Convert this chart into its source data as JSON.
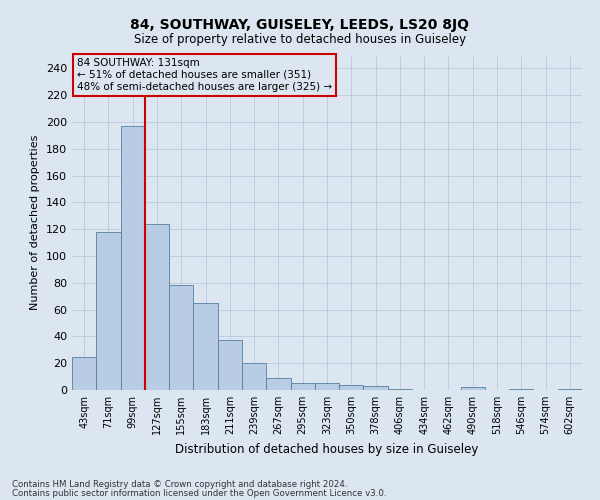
{
  "title1": "84, SOUTHWAY, GUISELEY, LEEDS, LS20 8JQ",
  "title2": "Size of property relative to detached houses in Guiseley",
  "xlabel": "Distribution of detached houses by size in Guiseley",
  "ylabel": "Number of detached properties",
  "categories": [
    "43sqm",
    "71sqm",
    "99sqm",
    "127sqm",
    "155sqm",
    "183sqm",
    "211sqm",
    "239sqm",
    "267sqm",
    "295sqm",
    "323sqm",
    "350sqm",
    "378sqm",
    "406sqm",
    "434sqm",
    "462sqm",
    "490sqm",
    "518sqm",
    "546sqm",
    "574sqm",
    "602sqm"
  ],
  "values": [
    25,
    118,
    197,
    124,
    78,
    65,
    37,
    20,
    9,
    5,
    5,
    4,
    3,
    1,
    0,
    0,
    2,
    0,
    1,
    0,
    1
  ],
  "bar_color": "#b8cce4",
  "bar_edgecolor": "#5580a0",
  "bar_linewidth": 0.6,
  "vline_color": "#cc0000",
  "vline_linewidth": 1.5,
  "vline_position": 2.5,
  "annotation_line1": "84 SOUTHWAY: 131sqm",
  "annotation_line2": "← 51% of detached houses are smaller (351)",
  "annotation_line3": "48% of semi-detached houses are larger (325) →",
  "box_edgecolor": "#cc0000",
  "ylim": [
    0,
    250
  ],
  "yticks": [
    0,
    20,
    40,
    60,
    80,
    100,
    120,
    140,
    160,
    180,
    200,
    220,
    240
  ],
  "grid_color": "#c0cce0",
  "background_color": "#dce6f0",
  "footnote1": "Contains HM Land Registry data © Crown copyright and database right 2024.",
  "footnote2": "Contains public sector information licensed under the Open Government Licence v3.0."
}
